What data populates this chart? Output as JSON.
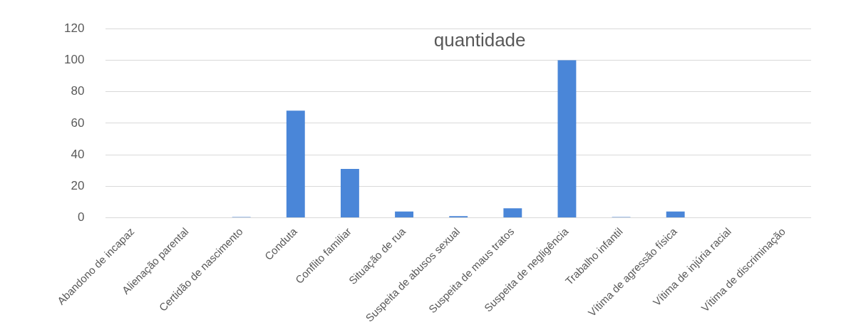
{
  "chart_data": {
    "type": "bar",
    "title": "quantidade",
    "categories": [
      "Abandono de incapaz",
      "Alienação parental",
      "Certidão de nascimento",
      "Conduta",
      "Conflito familiar",
      "Situação de rua",
      "Suspeita de abusos sexual",
      "Suspeita de maus tratos",
      "Suspeita de negligência",
      "Trabalho infantil",
      "Vítima de agressão física",
      "Vítima de injúria racial",
      "Vítima de discriminação"
    ],
    "values": [
      0,
      0,
      0.5,
      68,
      31,
      4,
      1,
      6,
      100,
      0.5,
      4,
      0,
      0
    ],
    "color": "#4a86d8",
    "ylim": [
      0,
      120
    ],
    "yticks": [
      0,
      20,
      40,
      60,
      80,
      100,
      120
    ],
    "grid": "y",
    "legend": false
  }
}
